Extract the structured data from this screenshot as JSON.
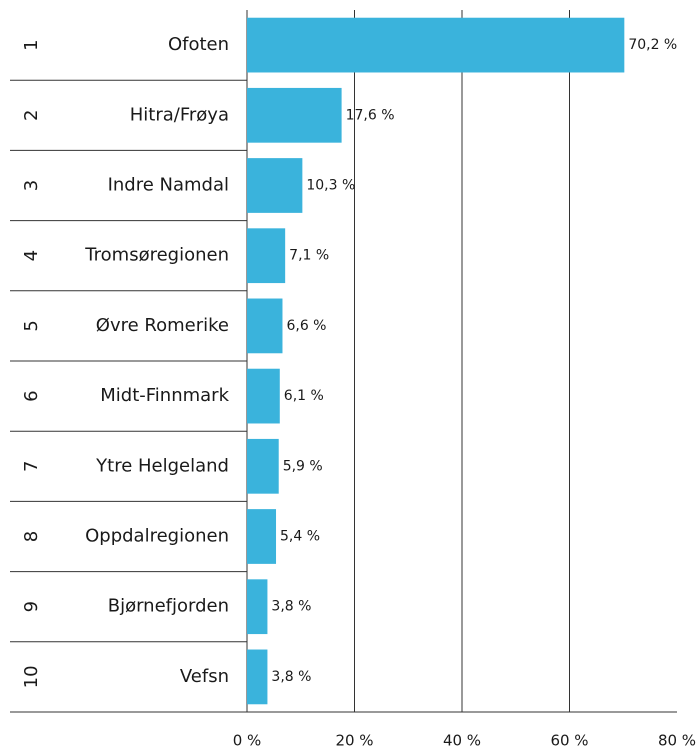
{
  "chart_data": {
    "type": "bar",
    "orientation": "horizontal",
    "ranks": [
      "1",
      "2",
      "3",
      "4",
      "5",
      "6",
      "7",
      "8",
      "9",
      "10"
    ],
    "categories": [
      "Ofoten",
      "Hitra/Frøya",
      "Indre Namdal",
      "Tromsøregionen",
      "Øvre Romerike",
      "Midt-Finnmark",
      "Ytre Helgeland",
      "Oppdalregionen",
      "Bjørnefjorden",
      "Vefsn"
    ],
    "values": [
      70.2,
      17.6,
      10.3,
      7.1,
      6.6,
      6.1,
      5.9,
      5.4,
      3.8,
      3.8
    ],
    "value_labels": [
      "70,2 %",
      "17,6 %",
      "10,3 %",
      "7,1 %",
      "6,6 %",
      "6,1 %",
      "5,9 %",
      "5,4 %",
      "3,8 %",
      "3,8 %"
    ],
    "color": "#3ab3dc",
    "xlim": [
      0,
      80
    ],
    "xticks": [
      {
        "value": 0,
        "label": "0 %"
      },
      {
        "value": 20,
        "label": "20 %"
      },
      {
        "value": 40,
        "label": "40 %"
      },
      {
        "value": 60,
        "label": "60 %"
      },
      {
        "value": 80,
        "label": "80 %"
      }
    ],
    "grid": true
  }
}
